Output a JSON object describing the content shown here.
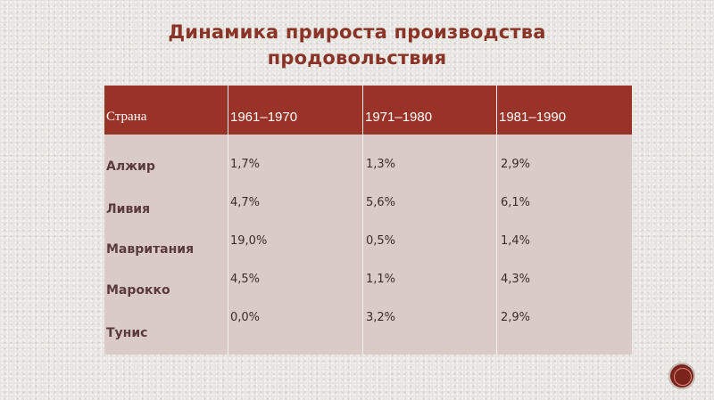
{
  "title": {
    "line1": "Динамика прироста производства",
    "line2": "продовольствия"
  },
  "table": {
    "headers": [
      "Страна",
      "1961–1970",
      "1971–1980",
      "1981–1990"
    ],
    "countries": [
      "Алжир",
      "Ливия",
      "Мавритания",
      "Марокко",
      "Тунис"
    ],
    "col1": [
      "1,7%",
      "4,7%",
      "19,0%",
      "4,5%",
      "0,0%"
    ],
    "col2": [
      "1,3%",
      "5,6%",
      "0,5%",
      "1,1%",
      "3,2%"
    ],
    "col3": [
      "2,9%",
      "6,1%",
      "1,4%",
      "4,3%",
      "2,9%"
    ]
  },
  "colors": {
    "title": "#8a3327",
    "header_bg": "#993328",
    "body_bg": "#dbcbc8"
  }
}
